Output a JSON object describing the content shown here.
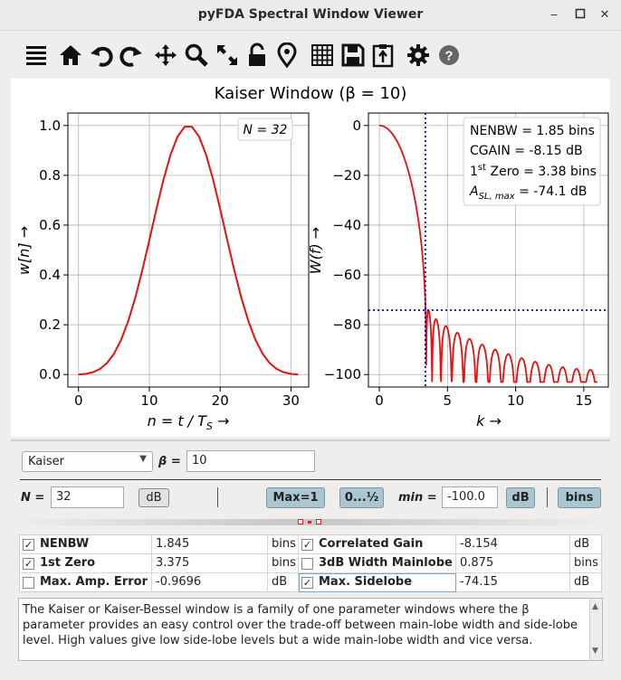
{
  "window": {
    "title": "pyFDA Spectral Window Viewer",
    "controls": [
      "minimize-icon",
      "maximize-icon",
      "close-icon"
    ]
  },
  "toolbar": {
    "icons": [
      "menu-icon",
      "home-icon",
      "undo-icon",
      "redo-icon",
      "pan-icon",
      "zoom-icon",
      "autoscale-icon",
      "lock-icon",
      "marker-icon",
      "grid-icon",
      "save-icon",
      "clipboard-icon",
      "settings-icon",
      "help-icon"
    ]
  },
  "plot": {
    "title": "Kaiser Window (β = 10)",
    "colors": {
      "curve": "#e8100f",
      "marker": "#0000cc",
      "axis": "#000000",
      "grid": "#b0b0b0"
    },
    "left": {
      "n_label": "N = 32",
      "xlabel": "n = t / T",
      "xlabel_sub": "S",
      "ylabel": "w[n] →",
      "xticks": [
        "0",
        "10",
        "20",
        "30"
      ],
      "yticks": [
        "0.0",
        "0.2",
        "0.4",
        "0.6",
        "0.8",
        "1.0"
      ],
      "xlim": [
        -1.5,
        32.5
      ],
      "ylim": [
        -0.05,
        1.05
      ],
      "beta": 10,
      "N": 32
    },
    "right": {
      "info": {
        "nenbw": "NENBW = 1.85 bins",
        "cgain": "CGAIN = -8.15 dB",
        "zero_pre": "1",
        "zero_sup": "st",
        "zero_post": " Zero = 3.38 bins",
        "asl_pre": "A",
        "asl_sub": "SL, max",
        "asl_post": " = -74.1 dB"
      },
      "xlabel": "k →",
      "ylabel": "W(f) →",
      "xticks": [
        "0",
        "5",
        "10",
        "15"
      ],
      "yticks": [
        "0",
        "−20",
        "−40",
        "−60",
        "−80",
        "−100"
      ],
      "xlim": [
        -0.8,
        16.8
      ],
      "ylim": [
        -105,
        5
      ],
      "first_zero": 3.375,
      "max_sidelobe_db": -74.15
    }
  },
  "controls": {
    "window_type": "Kaiser",
    "beta_label": "β =",
    "beta_value": "10",
    "n_label": "N =",
    "n_value": "32",
    "db_button": "dB",
    "max1_button": "Max=1",
    "range_button": "0...½",
    "min_label": "min =",
    "min_value": "-100.0",
    "db_toggle": "dB",
    "bins_button": "bins"
  },
  "table": {
    "rows": [
      [
        {
          "checked": true,
          "name": "NENBW",
          "value": "1.845",
          "unit": "bins"
        },
        {
          "checked": true,
          "name": "Correlated Gain",
          "value": "-8.154",
          "unit": "dB"
        }
      ],
      [
        {
          "checked": true,
          "name": "1st Zero",
          "value": "3.375",
          "unit": "bins"
        },
        {
          "checked": false,
          "name": "3dB Width Mainlobe",
          "value": "0.875",
          "unit": "bins"
        }
      ],
      [
        {
          "checked": false,
          "name": "Max. Amp. Error",
          "value": "-0.9696",
          "unit": "dB"
        },
        {
          "checked": true,
          "name": "Max. Sidelobe",
          "value": "-74.15",
          "unit": "dB"
        }
      ]
    ],
    "check_glyph": "✓"
  },
  "description": {
    "p1": "The Kaiser or Kaiser-Bessel window is a family of one parameter windows where the β parameter provides an easy control over the trade-off between main-lobe width and side-lobe level. High values give low side-lobe levels but a wide main-lobe width and vice versa.",
    "scroll_up": "▲",
    "scroll_down": "▼"
  }
}
